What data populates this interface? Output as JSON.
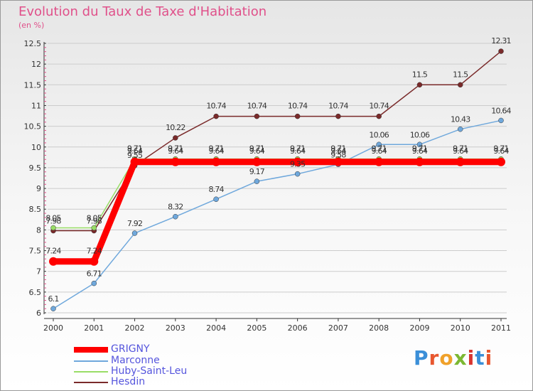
{
  "title": "Evolution du Taux de Taxe d'Habitation",
  "unit": "(en %)",
  "logo": "Proxiti",
  "colors": {
    "accent_title": "#e0508a",
    "grid": "#cccccc",
    "axis": "#333333",
    "tick_pink": "#e0508a",
    "legend_text": "#5555dd"
  },
  "chart_data": {
    "type": "line",
    "x": [
      "2000",
      "2001",
      "2002",
      "2003",
      "2004",
      "2005",
      "2006",
      "2007",
      "2008",
      "2009",
      "2010",
      "2011"
    ],
    "ylim": [
      6,
      12.5
    ],
    "yticks": [
      "6",
      "6.5",
      "7",
      "7.5",
      "8",
      "8.5",
      "9",
      "9.5",
      "10",
      "10.5",
      "11",
      "11.5",
      "12",
      "12.5"
    ],
    "grid": "horizontal",
    "legend_position": "bottom-left",
    "series": [
      {
        "name": "GRIGNY",
        "color": "#ff0000",
        "values": [
          7.24,
          7.24,
          9.64,
          9.64,
          9.64,
          9.64,
          9.64,
          9.64,
          9.64,
          9.64,
          9.64,
          9.64
        ],
        "labels": [
          "7.24",
          "7.24",
          "9.64",
          "9.64",
          "9.64",
          "9.64",
          "9.64",
          "9.64",
          "9.64",
          "9.64",
          "9.64",
          "9.64"
        ]
      },
      {
        "name": "Marconne",
        "color": "#6fa8dc",
        "values": [
          6.1,
          6.71,
          7.92,
          8.32,
          8.74,
          9.17,
          9.35,
          9.58,
          10.06,
          10.06,
          10.43,
          10.64
        ],
        "labels": [
          "6.1",
          "6.71",
          "7.92",
          "8.32",
          "8.74",
          "9.17",
          "9.35",
          "9.58",
          "10.06",
          "10.06",
          "10.43",
          "10.64"
        ]
      },
      {
        "name": "Huby-Saint-Leu",
        "color": "#99dd66",
        "values": [
          8.05,
          8.05,
          9.71,
          9.71,
          9.71,
          9.71,
          9.71,
          9.71,
          9.71,
          9.71,
          9.71,
          9.71
        ],
        "labels": [
          "8.05",
          "8.05",
          "9.71",
          "9.71",
          "9.71",
          "9.71",
          "9.71",
          "9.71",
          "9.71",
          "9.71",
          "9.71",
          "9.71"
        ]
      },
      {
        "name": "Hesdin",
        "color": "#7a2a2a",
        "values": [
          7.98,
          7.98,
          9.55,
          10.22,
          10.74,
          10.74,
          10.74,
          10.74,
          10.74,
          11.5,
          11.5,
          12.31
        ],
        "labels": [
          "7.98",
          "7.98",
          "9.55",
          "10.22",
          "10.74",
          "10.74",
          "10.74",
          "10.74",
          "10.74",
          "11.5",
          "11.5",
          "12.31"
        ]
      }
    ]
  }
}
